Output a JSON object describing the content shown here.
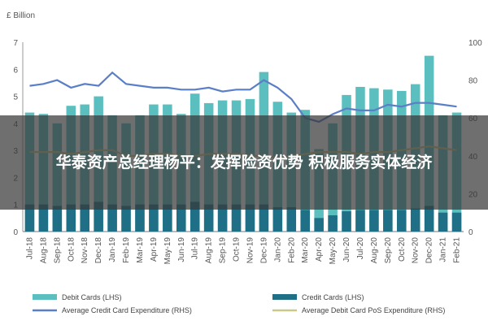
{
  "banner": {
    "text": "华泰资产总经理杨平：发挥险资优势 积极服务实体经济"
  },
  "chart_data": {
    "type": "bar",
    "left_unit_label": "£ Billion",
    "x": [
      "Jul-18",
      "Aug-18",
      "Sep-18",
      "Oct-18",
      "Nov-18",
      "Dec-18",
      "Jan-19",
      "Feb-19",
      "Mar-19",
      "Apr-19",
      "May-19",
      "Jun-19",
      "Jul-19",
      "Aug-19",
      "Sep-19",
      "Oct-19",
      "Nov-19",
      "Dec-19",
      "Jan-20",
      "Feb-20",
      "Mar-20",
      "Apr-20",
      "May-20",
      "Jun-20",
      "Jul-20",
      "Aug-20",
      "Sep-20",
      "Oct-20",
      "Nov-20",
      "Dec-20",
      "Jan-21",
      "Feb-21"
    ],
    "series": [
      {
        "name": "Debit Cards (LHS)",
        "kind": "bar",
        "axis": "left",
        "color": "#5bbfbf",
        "values": [
          4.4,
          4.35,
          4.0,
          4.65,
          4.7,
          5.0,
          4.3,
          4.0,
          4.3,
          4.7,
          4.7,
          4.35,
          5.1,
          4.75,
          4.85,
          4.85,
          4.9,
          5.9,
          4.8,
          4.4,
          4.5,
          3.05,
          4.0,
          5.05,
          5.35,
          5.3,
          5.25,
          5.2,
          5.45,
          6.5,
          4.3,
          4.4
        ]
      },
      {
        "name": "Credit Cards (LHS)",
        "kind": "bar",
        "axis": "left",
        "color": "#1f6f86",
        "values": [
          1.0,
          1.0,
          0.95,
          1.0,
          1.0,
          1.1,
          1.0,
          0.95,
          1.0,
          1.0,
          1.0,
          1.0,
          1.1,
          1.0,
          1.0,
          1.0,
          1.0,
          1.0,
          0.9,
          0.9,
          0.8,
          0.5,
          0.6,
          0.75,
          0.8,
          0.8,
          0.8,
          0.8,
          0.85,
          0.95,
          0.7,
          0.7
        ]
      },
      {
        "name": "Average Credit Card Expenditure (RHS)",
        "kind": "line",
        "axis": "right",
        "color": "#5b7fc7",
        "values": [
          77,
          78,
          80,
          76,
          78,
          77,
          84,
          78,
          77,
          76,
          76,
          75,
          75,
          76,
          74,
          75,
          75,
          80,
          76,
          70,
          60,
          58,
          62,
          65,
          64,
          64,
          67,
          66,
          68,
          68,
          67,
          66
        ]
      },
      {
        "name": "Average Debit Card PoS Expenditure (RHS)",
        "kind": "line",
        "axis": "right",
        "color": "#c9c98c",
        "values": [
          42,
          42,
          42,
          41,
          42,
          43,
          43,
          40,
          40,
          41,
          41,
          40,
          40,
          41,
          41,
          41,
          40,
          40,
          39,
          40,
          41,
          42,
          42,
          42,
          41,
          42,
          42,
          43,
          44,
          45,
          44,
          43
        ]
      }
    ],
    "ylim_left": [
      0,
      7
    ],
    "yticks_left": [
      0,
      1,
      2,
      3,
      4,
      5,
      6,
      7
    ],
    "ylim_right": [
      0,
      100
    ],
    "yticks_right": [
      0,
      20,
      40,
      60,
      80,
      100
    ],
    "legend_position": "bottom",
    "grid": false
  }
}
